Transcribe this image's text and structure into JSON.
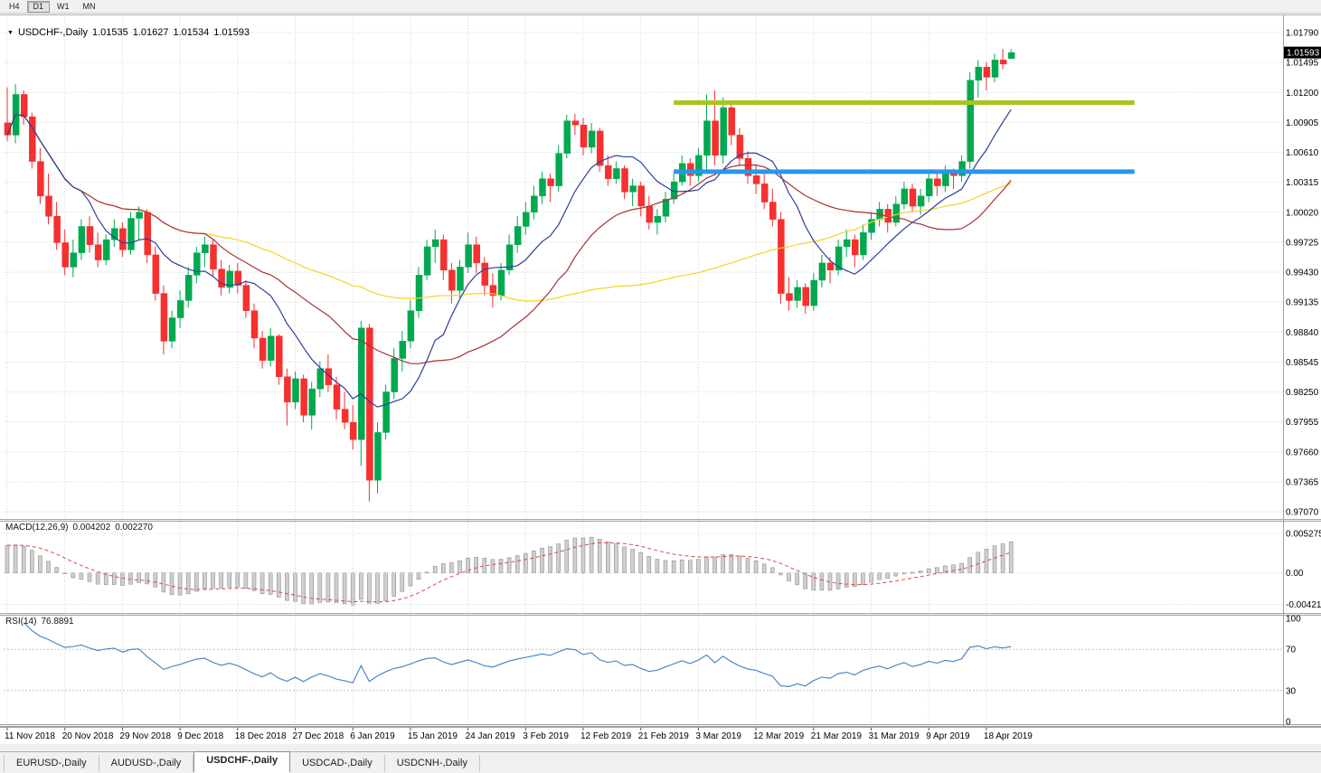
{
  "toolbar": {
    "periods": [
      {
        "label": "H4",
        "active": false
      },
      {
        "label": "D1",
        "active": true
      },
      {
        "label": "W1",
        "active": false
      },
      {
        "label": "MN",
        "active": false
      }
    ]
  },
  "header": {
    "dropdown_icon": "▼",
    "symbol": "USDCHF-,Daily",
    "open": "1.01535",
    "high": "1.01627",
    "low": "1.01534",
    "close": "1.01593"
  },
  "price_tag": "1.01593",
  "indicators": {
    "macd": {
      "label": "MACD(12,26,9)",
      "value_main": "0.004202",
      "value_signal": "0.002270",
      "scale": {
        "min": -0.005,
        "max": 0.0065
      },
      "axis": [
        {
          "v": 0.005275,
          "t": "0.005275"
        },
        {
          "v": 0,
          "t": "0.00"
        },
        {
          "v": -0.00421,
          "t": "-0.00421"
        }
      ]
    },
    "rsi": {
      "label": "RSI(14)",
      "value": "76.8891",
      "levels": [
        70,
        30
      ],
      "axis": [
        {
          "v": 100,
          "t": "100"
        },
        {
          "v": 70,
          "t": "70"
        },
        {
          "v": 30,
          "t": "30"
        },
        {
          "v": 0,
          "t": "0"
        }
      ]
    }
  },
  "tabs": [
    {
      "label": "EURUSD-,Daily",
      "active": false
    },
    {
      "label": "AUDUSD-,Daily",
      "active": false
    },
    {
      "label": "USDCHF-,Daily",
      "active": true
    },
    {
      "label": "USDCAD-,Daily",
      "active": false
    },
    {
      "label": "USDCNH-,Daily",
      "active": false
    }
  ],
  "chart_data": {
    "type": "candlestick",
    "title": "USDCHF-,Daily",
    "y_range": [
      0.9707,
      1.0179
    ],
    "y_ticks": [
      "1.01790",
      "1.01495",
      "1.01200",
      "1.00905",
      "1.00610",
      "1.00315",
      "1.00020",
      "0.99725",
      "0.99430",
      "0.99135",
      "0.98840",
      "0.98545",
      "0.98250",
      "0.97955",
      "0.97660",
      "0.97365",
      "0.97070"
    ],
    "x_labels": [
      {
        "i": 0,
        "t": "11 Nov 2018"
      },
      {
        "i": 7,
        "t": "20 Nov 2018"
      },
      {
        "i": 14,
        "t": "29 Nov 2018"
      },
      {
        "i": 21,
        "t": "9 Dec 2018"
      },
      {
        "i": 28,
        "t": "18 Dec 2018"
      },
      {
        "i": 35,
        "t": "27 Dec 2018"
      },
      {
        "i": 42,
        "t": "6 Jan 2019"
      },
      {
        "i": 49,
        "t": "15 Jan 2019"
      },
      {
        "i": 56,
        "t": "24 Jan 2019"
      },
      {
        "i": 63,
        "t": "3 Feb 2019"
      },
      {
        "i": 70,
        "t": "12 Feb 2019"
      },
      {
        "i": 77,
        "t": "21 Feb 2019"
      },
      {
        "i": 84,
        "t": "3 Mar 2019"
      },
      {
        "i": 91,
        "t": "12 Mar 2019"
      },
      {
        "i": 98,
        "t": "21 Mar 2019"
      },
      {
        "i": 105,
        "t": "31 Mar 2019"
      },
      {
        "i": 112,
        "t": "9 Apr 2019"
      },
      {
        "i": 119,
        "t": "18 Apr 2019"
      }
    ],
    "ohlc": [
      [
        1.009,
        1.0125,
        1.0072,
        1.0078
      ],
      [
        1.0078,
        1.0128,
        1.007,
        1.0118
      ],
      [
        1.0118,
        1.0122,
        1.0088,
        1.0096
      ],
      [
        1.0096,
        1.01,
        1.0045,
        1.0052
      ],
      [
        1.0052,
        1.0065,
        1.001,
        1.0018
      ],
      [
        1.0018,
        1.004,
        0.999,
        0.9998
      ],
      [
        0.9998,
        1.0012,
        0.9965,
        0.9972
      ],
      [
        0.9972,
        0.9985,
        0.994,
        0.9948
      ],
      [
        0.9948,
        0.9975,
        0.9938,
        0.9962
      ],
      [
        0.9962,
        0.9995,
        0.9955,
        0.9988
      ],
      [
        0.9988,
        0.9998,
        0.9962,
        0.997
      ],
      [
        0.997,
        0.9982,
        0.9948,
        0.9955
      ],
      [
        0.9955,
        0.998,
        0.995,
        0.9975
      ],
      [
        0.9975,
        0.9995,
        0.9968,
        0.9986
      ],
      [
        0.9986,
        0.9992,
        0.9958,
        0.9965
      ],
      [
        0.9965,
        1.0002,
        0.996,
        0.9996
      ],
      [
        0.9996,
        1.0008,
        0.9975,
        1.0002
      ],
      [
        1.0002,
        1.0005,
        0.9952,
        0.996
      ],
      [
        0.996,
        0.9968,
        0.9915,
        0.9922
      ],
      [
        0.9922,
        0.993,
        0.9862,
        0.9875
      ],
      [
        0.9875,
        0.9905,
        0.9868,
        0.9898
      ],
      [
        0.9898,
        0.9925,
        0.9888,
        0.9915
      ],
      [
        0.9915,
        0.9948,
        0.9908,
        0.994
      ],
      [
        0.994,
        0.9968,
        0.9932,
        0.9962
      ],
      [
        0.9962,
        0.9978,
        0.9948,
        0.997
      ],
      [
        0.997,
        0.9975,
        0.9938,
        0.9946
      ],
      [
        0.9946,
        0.9955,
        0.992,
        0.9928
      ],
      [
        0.9928,
        0.995,
        0.9922,
        0.9944
      ],
      [
        0.9944,
        0.9952,
        0.9922,
        0.993
      ],
      [
        0.993,
        0.9935,
        0.9898,
        0.9905
      ],
      [
        0.9905,
        0.9912,
        0.9868,
        0.9878
      ],
      [
        0.9878,
        0.9885,
        0.9848,
        0.9856
      ],
      [
        0.9856,
        0.9888,
        0.985,
        0.988
      ],
      [
        0.988,
        0.9882,
        0.9832,
        0.984
      ],
      [
        0.984,
        0.9848,
        0.9792,
        0.9815
      ],
      [
        0.9815,
        0.9845,
        0.9808,
        0.9838
      ],
      [
        0.9838,
        0.9842,
        0.9795,
        0.9802
      ],
      [
        0.9802,
        0.9835,
        0.9788,
        0.9828
      ],
      [
        0.9828,
        0.9855,
        0.982,
        0.9848
      ],
      [
        0.9848,
        0.9862,
        0.9825,
        0.9832
      ],
      [
        0.9832,
        0.984,
        0.9798,
        0.9808
      ],
      [
        0.9808,
        0.9825,
        0.9788,
        0.9795
      ],
      [
        0.9795,
        0.9812,
        0.9768,
        0.9778
      ],
      [
        0.9778,
        0.9895,
        0.9752,
        0.9888
      ],
      [
        0.9888,
        0.9892,
        0.9717,
        0.9738
      ],
      [
        0.9738,
        0.9795,
        0.9725,
        0.9785
      ],
      [
        0.9785,
        0.9832,
        0.9778,
        0.9825
      ],
      [
        0.9825,
        0.9868,
        0.9818,
        0.9858
      ],
      [
        0.9858,
        0.9885,
        0.9845,
        0.9875
      ],
      [
        0.9875,
        0.9915,
        0.9868,
        0.9905
      ],
      [
        0.9905,
        0.9948,
        0.9898,
        0.994
      ],
      [
        0.994,
        0.9975,
        0.9935,
        0.9968
      ],
      [
        0.9968,
        0.9985,
        0.9952,
        0.9975
      ],
      [
        0.9975,
        0.998,
        0.9935,
        0.9945
      ],
      [
        0.9945,
        0.9952,
        0.9912,
        0.9925
      ],
      [
        0.9925,
        0.9955,
        0.9918,
        0.9948
      ],
      [
        0.9948,
        0.9982,
        0.9942,
        0.997
      ],
      [
        0.997,
        0.9978,
        0.9942,
        0.9952
      ],
      [
        0.9952,
        0.9958,
        0.992,
        0.993
      ],
      [
        0.993,
        0.9942,
        0.9908,
        0.992
      ],
      [
        0.992,
        0.9952,
        0.9915,
        0.9945
      ],
      [
        0.9945,
        0.998,
        0.994,
        0.997
      ],
      [
        0.997,
        0.9998,
        0.9962,
        0.9988
      ],
      [
        0.9988,
        1.0012,
        0.998,
        1.0002
      ],
      [
        1.0002,
        1.0028,
        0.9995,
        1.0018
      ],
      [
        1.0018,
        1.0042,
        1.001,
        1.0035
      ],
      [
        1.0035,
        1.004,
        1.0012,
        1.0028
      ],
      [
        1.0028,
        1.0068,
        1.0022,
        1.006
      ],
      [
        1.006,
        1.0098,
        1.0055,
        1.0092
      ],
      [
        1.0092,
        1.0099,
        1.0078,
        1.0088
      ],
      [
        1.0088,
        1.0095,
        1.0058,
        1.0066
      ],
      [
        1.0066,
        1.009,
        1.006,
        1.0082
      ],
      [
        1.0082,
        1.0085,
        1.0042,
        1.0048
      ],
      [
        1.0048,
        1.0058,
        1.0028,
        1.0035
      ],
      [
        1.0035,
        1.0052,
        1.003,
        1.0045
      ],
      [
        1.0045,
        1.0048,
        1.0015,
        1.0022
      ],
      [
        1.0022,
        1.0035,
        1.0008,
        1.0028
      ],
      [
        1.0028,
        1.0032,
        0.9998,
        1.0008
      ],
      [
        1.0008,
        1.0018,
        0.9985,
        0.9992
      ],
      [
        0.9992,
        1.0005,
        0.998,
        0.9998
      ],
      [
        0.9998,
        1.0022,
        0.9992,
        1.0015
      ],
      [
        1.0015,
        1.004,
        1.001,
        1.0032
      ],
      [
        1.0032,
        1.0058,
        1.0028,
        1.005
      ],
      [
        1.005,
        1.0055,
        1.0028,
        1.0038
      ],
      [
        1.0038,
        1.0065,
        1.0032,
        1.0058
      ],
      [
        1.0058,
        1.0118,
        1.0042,
        1.0092
      ],
      [
        1.0092,
        1.0122,
        1.0048,
        1.0058
      ],
      [
        1.0058,
        1.0115,
        1.005,
        1.0105
      ],
      [
        1.0105,
        1.0112,
        1.0068,
        1.0078
      ],
      [
        1.0078,
        1.0085,
        1.0048,
        1.0055
      ],
      [
        1.0055,
        1.0062,
        1.003,
        1.0038
      ],
      [
        1.0038,
        1.0048,
        1.002,
        1.003
      ],
      [
        1.003,
        1.0042,
        1.0005,
        1.0012
      ],
      [
        1.0012,
        1.0025,
        0.9988,
        0.9995
      ],
      [
        0.9995,
        1.0002,
        0.9912,
        0.9922
      ],
      [
        0.9922,
        0.9938,
        0.9905,
        0.9915
      ],
      [
        0.9915,
        0.9935,
        0.9908,
        0.9928
      ],
      [
        0.9928,
        0.9932,
        0.9902,
        0.991
      ],
      [
        0.991,
        0.9942,
        0.9905,
        0.9935
      ],
      [
        0.9935,
        0.996,
        0.9928,
        0.9952
      ],
      [
        0.9952,
        0.9958,
        0.9932,
        0.9945
      ],
      [
        0.9945,
        0.9975,
        0.994,
        0.9968
      ],
      [
        0.9968,
        0.9985,
        0.9958,
        0.9975
      ],
      [
        0.9975,
        0.998,
        0.9948,
        0.996
      ],
      [
        0.996,
        0.999,
        0.9955,
        0.9982
      ],
      [
        0.9982,
        1.0002,
        0.9975,
        0.9995
      ],
      [
        0.9995,
        1.0012,
        0.9988,
        1.0005
      ],
      [
        1.0005,
        1.001,
        0.9982,
        0.9992
      ],
      [
        0.9992,
        1.0018,
        0.9988,
        1.001
      ],
      [
        1.001,
        1.0032,
        1.0005,
        1.0025
      ],
      [
        1.0025,
        1.003,
        1.0002,
        1.0008
      ],
      [
        1.0008,
        1.0025,
        1.0,
        1.0018
      ],
      [
        1.0018,
        1.0042,
        1.0012,
        1.0035
      ],
      [
        1.0035,
        1.004,
        1.0018,
        1.0028
      ],
      [
        1.0028,
        1.0048,
        1.0022,
        1.0042
      ],
      [
        1.0042,
        1.0045,
        1.0025,
        1.0038
      ],
      [
        1.0038,
        1.0058,
        1.0032,
        1.0052
      ],
      [
        1.0052,
        1.014,
        1.0045,
        1.0132
      ],
      [
        1.0132,
        1.0152,
        1.0115,
        1.0145
      ],
      [
        1.0145,
        1.015,
        1.0122,
        1.0135
      ],
      [
        1.0135,
        1.0158,
        1.013,
        1.0152
      ],
      [
        1.0152,
        1.0163,
        1.0143,
        1.0148
      ],
      [
        1.01535,
        1.01627,
        1.01534,
        1.01593
      ]
    ],
    "moving_averages": [
      {
        "period": 60,
        "color_key": "ma_slow"
      },
      {
        "period": 25,
        "color_key": "ma_mid"
      },
      {
        "period": 10,
        "color_key": "ma_fast"
      }
    ],
    "hlines": [
      {
        "price": 1.011,
        "from_index": 81,
        "to_index": 137,
        "color": "#a9c51f",
        "width": 5
      },
      {
        "price": 1.0042,
        "from_index": 81,
        "to_index": 137,
        "color": "#2a96e8",
        "width": 5
      }
    ],
    "colors": {
      "up": "#00a94f",
      "down": "#f62f2f",
      "ma_fast": "#2b3f9e",
      "ma_mid": "#a83232",
      "ma_slow": "#f5d327",
      "macd_hist": "#cfcfcf",
      "macd_hist_border": "#8f8f8f",
      "macd_signal": "#e04545",
      "rsi": "#3d7fc4"
    }
  }
}
